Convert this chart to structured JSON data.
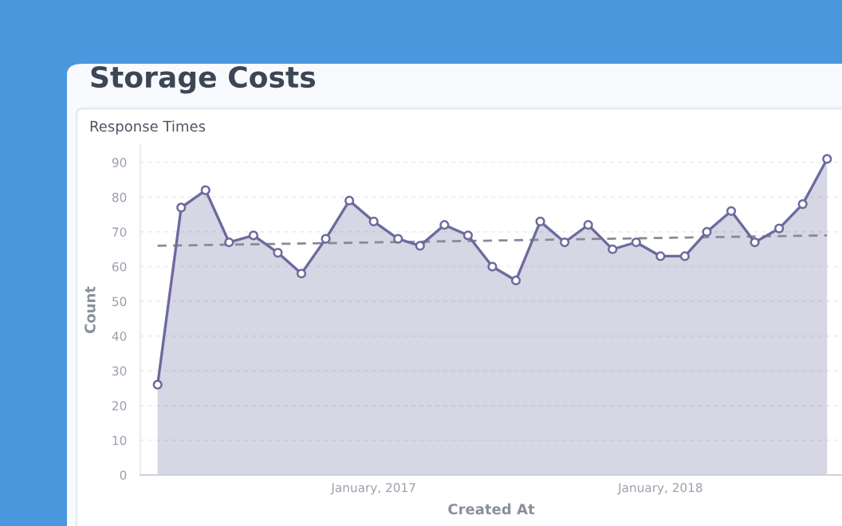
{
  "chart_data": {
    "type": "area",
    "title": "Storage Costs",
    "subtitle": "Response Times",
    "xlabel": "Created At",
    "ylabel": "Count",
    "x": [
      "2016-04",
      "2016-05",
      "2016-06",
      "2016-07",
      "2016-08",
      "2016-09",
      "2016-10",
      "2016-11",
      "2016-12",
      "2017-01",
      "2017-02",
      "2017-03",
      "2017-04",
      "2017-05",
      "2017-06",
      "2017-07",
      "2017-08",
      "2017-09",
      "2017-10",
      "2017-11",
      "2017-12",
      "2018-01",
      "2018-02",
      "2018-03",
      "2018-04",
      "2018-05",
      "2018-06",
      "2018-07",
      "2018-08"
    ],
    "series": [
      {
        "color": "#6c6a9e",
        "marker": "circle",
        "values": [
          26,
          77,
          82,
          67,
          69,
          64,
          58,
          68,
          79,
          73,
          68,
          66,
          72,
          69,
          60,
          56,
          73,
          67,
          72,
          65,
          67,
          63,
          63,
          70,
          76,
          67,
          71,
          78,
          91
        ]
      },
      {
        "type": "line",
        "color": "#8a8a96",
        "line_style": "dashed",
        "marker": "none",
        "x": [
          "2016-04",
          "2018-08"
        ],
        "values": [
          66,
          69
        ]
      }
    ],
    "xlim": [
      "2016-03-10",
      "2018-08-20"
    ],
    "xticks": [
      {
        "value": "2017-01",
        "label": "January, 2017"
      },
      {
        "value": "2018-01",
        "label": "January, 2018"
      }
    ],
    "ylim": [
      0,
      95
    ],
    "yticks": [
      0,
      10,
      20,
      30,
      40,
      50,
      60,
      70,
      80,
      90
    ],
    "grid": "y"
  }
}
